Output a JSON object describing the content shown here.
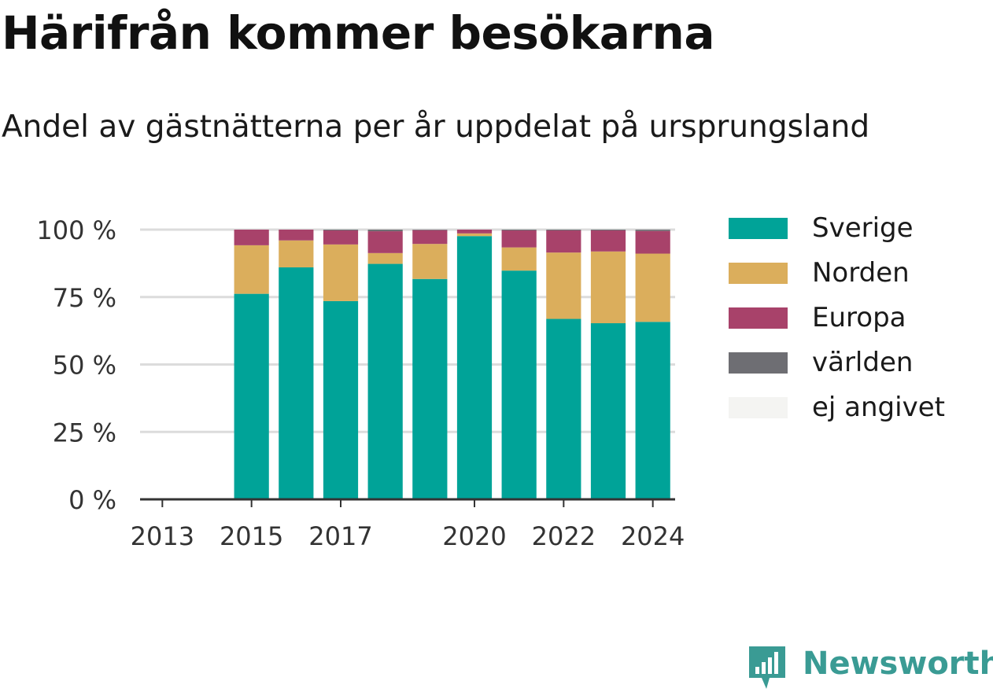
{
  "header": {
    "title": "Härifrån kommer besökarna",
    "subtitle": "Andel av gästnätterna per år uppdelat på ursprungsland"
  },
  "chart_data": {
    "type": "bar",
    "stacked": true,
    "title": "Härifrån kommer besökarna",
    "subtitle": "Andel av gästnätterna per år uppdelat på ursprungsland",
    "xlabel": "",
    "ylabel": "",
    "x": [
      2013,
      2014,
      2015,
      2016,
      2017,
      2018,
      2019,
      2020,
      2021,
      2022,
      2023,
      2024
    ],
    "x_tick_labels": [
      "2013",
      "2015",
      "2017",
      "2020",
      "2022",
      "2024"
    ],
    "y_tick_labels": [
      "0 %",
      "25 %",
      "50 %",
      "75 %",
      "100 %"
    ],
    "ylim": [
      0,
      100
    ],
    "y_unit": "%",
    "grid": "horizontal",
    "legend_position": "right",
    "series": [
      {
        "name": "Sverige",
        "color": "#00a398",
        "values": [
          null,
          null,
          76.2,
          86.0,
          73.5,
          87.3,
          81.7,
          97.6,
          84.8,
          66.9,
          65.3,
          65.8
        ]
      },
      {
        "name": "Norden",
        "color": "#dbae5c",
        "values": [
          null,
          null,
          18.0,
          10.0,
          21.0,
          4.0,
          13.0,
          1.0,
          8.6,
          24.6,
          26.6,
          25.3
        ]
      },
      {
        "name": "Europa",
        "color": "#a8426a",
        "values": [
          null,
          null,
          5.8,
          4.0,
          5.2,
          8.1,
          5.1,
          1.4,
          6.3,
          8.2,
          7.8,
          8.4
        ]
      },
      {
        "name": "världen",
        "color": "#6e6e73",
        "values": [
          null,
          null,
          0.0,
          0.0,
          0.3,
          0.6,
          0.2,
          0.0,
          0.3,
          0.3,
          0.3,
          0.5
        ]
      },
      {
        "name": "ej angivet",
        "color": "#f4f4f2",
        "values": [
          null,
          null,
          0.0,
          0.0,
          0.0,
          0.0,
          0.0,
          0.0,
          0.0,
          0.0,
          0.0,
          0.0
        ]
      }
    ]
  },
  "brand": {
    "name": "Newsworthy",
    "icon": "newsworthy-logo-icon",
    "color": "#3a9b94"
  }
}
